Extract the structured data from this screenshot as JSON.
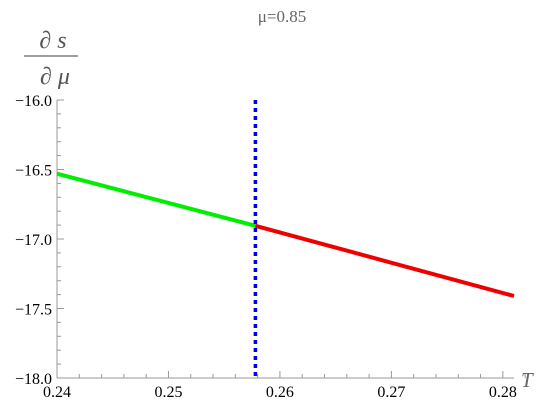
{
  "chart_data": {
    "type": "line",
    "title": "μ=0.85",
    "xlabel": "T",
    "ylabel_numerator": "∂ s",
    "ylabel_denominator": "∂ μ",
    "xlim": [
      0.24,
      0.281
    ],
    "ylim": [
      -18.0,
      -16.0
    ],
    "x_ticks": [
      0.24,
      0.25,
      0.26,
      0.27,
      0.28
    ],
    "x_tick_labels": [
      "0.24",
      "0.25",
      "0.26",
      "0.27",
      "0.28"
    ],
    "y_ticks": [
      -18.0,
      -17.5,
      -17.0,
      -16.5,
      -16.0
    ],
    "y_tick_labels": [
      "−18.0",
      "−17.5",
      "−17.0",
      "−16.5",
      "−16.0"
    ],
    "grid": false,
    "series": [
      {
        "color": "#00ee00",
        "x": [
          0.24,
          0.2578
        ],
        "y": [
          -16.53,
          -16.905
        ]
      },
      {
        "color": "#ee0000",
        "x": [
          0.2578,
          0.281
        ],
        "y": [
          -16.905,
          -17.41
        ]
      }
    ],
    "vertical_line": {
      "x": 0.2578,
      "color": "#0000ee",
      "style": "dashed"
    }
  }
}
